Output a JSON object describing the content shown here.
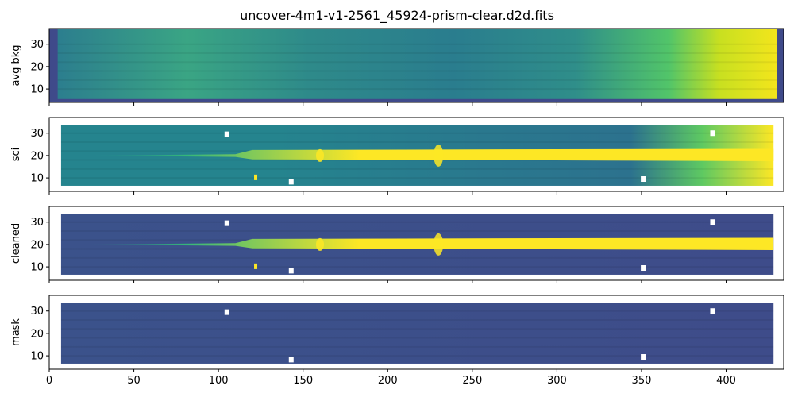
{
  "chart_data": {
    "type": "heatmap",
    "title": "uncover-4m1-v1-2561_45924-prism-clear.d2d.fits",
    "colormap": "viridis",
    "xlim": [
      0,
      434
    ],
    "ylim": [
      4,
      37
    ],
    "x_ticks": [
      0,
      50,
      100,
      150,
      200,
      250,
      300,
      350,
      400
    ],
    "y_ticks": [
      10,
      20,
      30
    ],
    "shared_x": true,
    "panels": [
      {
        "ylabel": "avg bkg"
      },
      {
        "ylabel": "sci"
      },
      {
        "ylabel": "cleaned"
      },
      {
        "ylabel": "mask"
      }
    ]
  }
}
